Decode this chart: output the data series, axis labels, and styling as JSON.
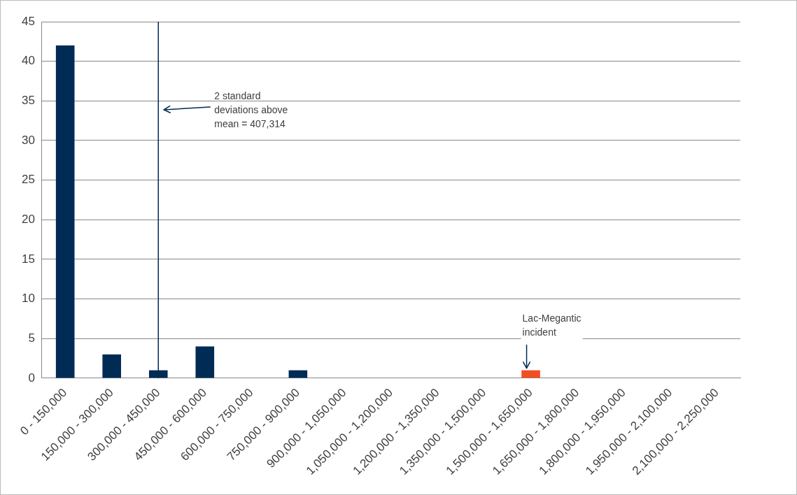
{
  "chart_data": {
    "type": "bar",
    "categories": [
      "0 - 150,000",
      "150,000 - 300,000",
      "300,000 - 450,000",
      "450,000 - 600,000",
      "600,000 - 750,000",
      "750,000 - 900,000",
      "900,000 - 1,050,000",
      "1,050,000 - 1,200,000",
      "1,200,000 - 1,350,000",
      "1,350,000 - 1,500,000",
      "1,500,000 - 1,650,000",
      "1,650,000 - 1,800,000",
      "1,800,000 - 1,950,000",
      "1,950,000 - 2,100,000",
      "2,100,000 - 2,250,000"
    ],
    "values": [
      42,
      3,
      1,
      4,
      0,
      1,
      0,
      0,
      0,
      0,
      1,
      0,
      0,
      0,
      0
    ],
    "colors": [
      "#002b55",
      "#002b55",
      "#002b55",
      "#002b55",
      "#002b55",
      "#002b55",
      "#002b55",
      "#002b55",
      "#002b55",
      "#002b55",
      "#f04e23",
      "#002b55",
      "#002b55",
      "#002b55",
      "#002b55"
    ],
    "ylim": [
      0,
      45
    ],
    "yticks": [
      0,
      5,
      10,
      15,
      20,
      25,
      30,
      35,
      40,
      45
    ],
    "grid": "y",
    "legend": false,
    "ref_lines": [
      {
        "axis": "x",
        "value": "300,000 - 450,000",
        "label": "2 standard deviations above mean = 407,314",
        "color": "#002b55"
      }
    ],
    "annotations": [
      {
        "text": "Lac-Megantic incident",
        "x": "1,500,000 - 1,650,000",
        "y": 1
      }
    ]
  }
}
